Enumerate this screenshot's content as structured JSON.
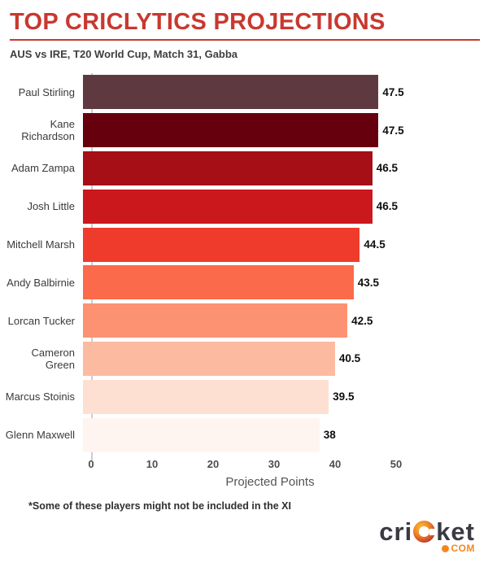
{
  "header": {
    "title": "TOP CRICLYTICS PROJECTIONS",
    "subtitle": "AUS vs IRE, T20 World Cup, Match 31, Gabba",
    "accent_color": "#c8392f"
  },
  "chart_data": {
    "type": "bar",
    "orientation": "horizontal",
    "title": "TOP CRICLYTICS PROJECTIONS",
    "subtitle": "AUS vs IRE, T20 World Cup, Match 31, Gabba",
    "xlabel": "Projected Points",
    "ylabel": "",
    "xlim": [
      0,
      50
    ],
    "xticks": [
      0,
      10,
      20,
      30,
      40,
      50
    ],
    "grid": false,
    "legend": false,
    "categories": [
      "Paul Stirling",
      "Kane Richardson",
      "Adam Zampa",
      "Josh Little",
      "Mitchell Marsh",
      "Andy Balbirnie",
      "Lorcan Tucker",
      "Cameron Green",
      "Marcus Stoinis",
      "Glenn Maxwell"
    ],
    "values": [
      47.5,
      47.5,
      46.5,
      46.5,
      44.5,
      43.5,
      42.5,
      40.5,
      39.5,
      38
    ],
    "value_labels": [
      "47.5",
      "47.5",
      "46.5",
      "46.5",
      "44.5",
      "43.5",
      "42.5",
      "40.5",
      "39.5",
      "38"
    ],
    "bar_colors": [
      "#5e3a40",
      "#67000d",
      "#a50f15",
      "#cb181d",
      "#ef3b2c",
      "#fb6a4a",
      "#fc9272",
      "#fcbba1",
      "#fee0d2",
      "#fff5f0"
    ]
  },
  "footnote": "*Some of these players might not be included in the XI",
  "logo": {
    "part1": "cri",
    "part2": "ket",
    "tld": "COM",
    "color": "#f6871f"
  }
}
